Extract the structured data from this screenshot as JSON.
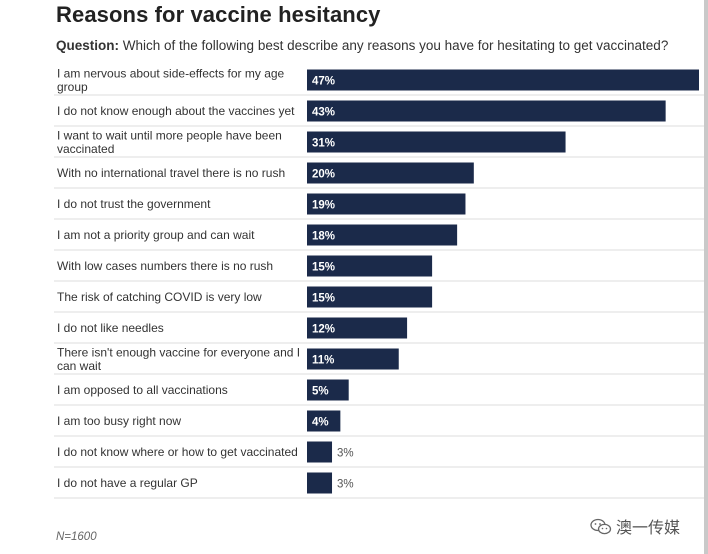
{
  "title": "Reasons for vaccine hesitancy",
  "question_label": "Question:",
  "question_text": " Which of the following best describe any reasons you have for hesitating to get vaccinated?",
  "note": "N=1600",
  "watermark": "澳一传媒",
  "watermark_icon": "wechat-icon",
  "colors": {
    "bar": "#1b2a4a",
    "grid": "#dcdcdc",
    "label_in": "#ffffff",
    "label_out": "#555555"
  },
  "chart_data": {
    "type": "bar",
    "orientation": "horizontal",
    "title": "Reasons for vaccine hesitancy",
    "xlim": [
      0,
      47
    ],
    "categories": [
      "I am nervous about side-effects for my age group",
      "I do not know enough about the vaccines yet",
      "I want to wait until more people have been vaccinated",
      "With no international travel there is no rush",
      "I do not trust the government",
      "I am not a priority group and can wait",
      "With low cases numbers there is no rush",
      "The risk of catching COVID is very low",
      "I do not like needles",
      "There isn't enough vaccine for everyone and I can wait",
      "I am opposed to all vaccinations",
      "I am too busy right now",
      "I do not know where or how to get vaccinated",
      "I do not have a regular GP"
    ],
    "values": [
      47,
      43,
      31,
      20,
      19,
      18,
      15,
      15,
      12,
      11,
      5,
      4,
      3,
      3
    ],
    "value_labels": [
      "47%",
      "43%",
      "31%",
      "20%",
      "19%",
      "18%",
      "15%",
      "15%",
      "12%",
      "11%",
      "5%",
      "4%",
      "3%",
      "3%"
    ]
  }
}
